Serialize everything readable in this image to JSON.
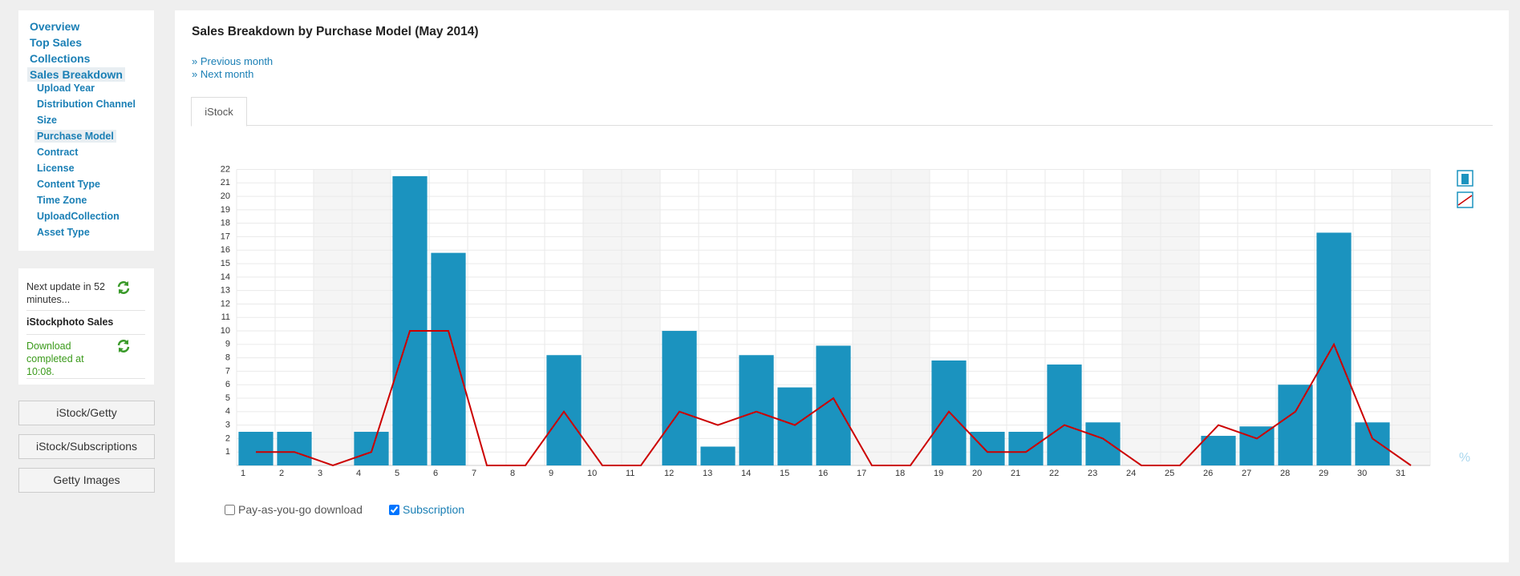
{
  "nav": [
    "Overview",
    "Top Sales",
    "Collections",
    "Sales Breakdown"
  ],
  "subnav": [
    "Upload Year",
    "Distribution Channel",
    "Size",
    "Purchase Model",
    "Contract",
    "License",
    "Content Type",
    "Time Zone",
    "UploadCollection",
    "Asset Type"
  ],
  "status": {
    "next_update": "Next update in 52 minutes...",
    "source": "iStockphoto Sales",
    "download": "Download completed at 10:08."
  },
  "buttons": [
    "iStock/Getty",
    "iStock/Subscriptions",
    "Getty Images"
  ],
  "page": {
    "title": "Sales Breakdown by Purchase Model (May 2014)",
    "links": [
      "» Previous month",
      "» Next month"
    ],
    "tab": "iStock"
  },
  "chart_data": {
    "type": "bar",
    "categories": [
      1,
      2,
      3,
      4,
      5,
      6,
      7,
      8,
      9,
      10,
      11,
      12,
      13,
      14,
      15,
      16,
      17,
      18,
      19,
      20,
      21,
      22,
      23,
      24,
      25,
      26,
      27,
      28,
      29,
      30,
      31
    ],
    "series": [
      {
        "type": "bar",
        "color": "#1b93bf",
        "values": [
          2.5,
          2.5,
          0,
          2.5,
          21.5,
          15.8,
          0,
          0,
          8.2,
          0,
          0,
          10,
          1.4,
          8.2,
          5.8,
          8.9,
          0,
          0,
          7.8,
          2.5,
          2.5,
          7.5,
          3.2,
          0,
          0,
          2.2,
          2.9,
          6,
          17.3,
          3.2,
          0
        ]
      },
      {
        "type": "line",
        "color": "#cc0000",
        "values": [
          1,
          1,
          0,
          1,
          10,
          10,
          0,
          0,
          4,
          0,
          0,
          4,
          3,
          4,
          3,
          5,
          0,
          0,
          4,
          1,
          1,
          3,
          2,
          0,
          0,
          3,
          2,
          4,
          9,
          2,
          0
        ]
      }
    ],
    "ylim": [
      0,
      22
    ],
    "yticks": [
      1,
      2,
      3,
      4,
      5,
      6,
      7,
      8,
      9,
      10,
      11,
      12,
      13,
      14,
      15,
      16,
      17,
      18,
      19,
      20,
      21,
      22
    ],
    "grid": true,
    "shaded_categories": [
      3,
      4,
      10,
      11,
      17,
      18,
      24,
      25,
      31
    ],
    "legend": [
      {
        "label": "Pay-as-you-go download",
        "checked": false
      },
      {
        "label": "Subscription",
        "checked": true
      }
    ],
    "unit_toggle": "%"
  }
}
